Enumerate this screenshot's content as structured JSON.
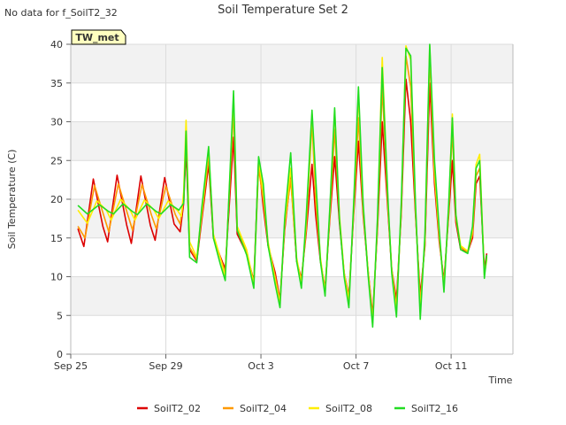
{
  "header": {
    "no_data_note": "No data for f_SoilT2_32",
    "station_badge": "TW_met"
  },
  "colors": {
    "band": "#f2f2f2",
    "grid": "#dcdcdc",
    "axis": "#bbbbbb",
    "badge_fill": "#ffffc0",
    "badge_text": "#aa0000"
  },
  "chart_data": {
    "type": "line",
    "title": "Soil Temperature Set 2",
    "xlabel": "Time",
    "ylabel": "Soil Temperature (C)",
    "xlim": [
      0,
      18.6
    ],
    "ylim": [
      0,
      40
    ],
    "yticks": [
      0,
      5,
      10,
      15,
      20,
      25,
      30,
      35,
      40
    ],
    "xticks": [
      {
        "day": 0,
        "label": "Sep 25"
      },
      {
        "day": 4,
        "label": "Sep 29"
      },
      {
        "day": 8,
        "label": "Oct 3"
      },
      {
        "day": 12,
        "label": "Oct 7"
      },
      {
        "day": 16,
        "label": "Oct 11"
      }
    ],
    "grid": true,
    "legend_position": "bottom",
    "series": [
      {
        "name": "SoilT2_02",
        "color": "#dd0000",
        "points": [
          [
            0.3,
            16.2
          ],
          [
            0.55,
            13.9
          ],
          [
            0.95,
            22.6
          ],
          [
            1.35,
            16.5
          ],
          [
            1.55,
            14.5
          ],
          [
            1.95,
            23.1
          ],
          [
            2.35,
            16.7
          ],
          [
            2.55,
            14.3
          ],
          [
            2.95,
            23.0
          ],
          [
            3.35,
            16.6
          ],
          [
            3.55,
            14.7
          ],
          [
            3.95,
            22.8
          ],
          [
            4.35,
            16.8
          ],
          [
            4.6,
            15.8
          ],
          [
            4.75,
            19.5
          ],
          [
            4.85,
            26.5
          ],
          [
            5.0,
            13.5
          ],
          [
            5.3,
            12.0
          ],
          [
            5.5,
            17.0
          ],
          [
            5.8,
            24.5
          ],
          [
            6.0,
            15.0
          ],
          [
            6.3,
            12.5
          ],
          [
            6.5,
            11.0
          ],
          [
            6.85,
            28.0
          ],
          [
            7.0,
            15.5
          ],
          [
            7.4,
            13.0
          ],
          [
            7.7,
            9.5
          ],
          [
            7.9,
            25.0
          ],
          [
            8.1,
            19.0
          ],
          [
            8.3,
            14.0
          ],
          [
            8.6,
            10.5
          ],
          [
            8.8,
            7.0
          ],
          [
            9.0,
            16.0
          ],
          [
            9.25,
            23.0
          ],
          [
            9.5,
            12.0
          ],
          [
            9.7,
            9.8
          ],
          [
            9.9,
            15.5
          ],
          [
            10.15,
            24.5
          ],
          [
            10.3,
            18.0
          ],
          [
            10.5,
            12.0
          ],
          [
            10.7,
            8.5
          ],
          [
            10.9,
            17.5
          ],
          [
            11.1,
            25.5
          ],
          [
            11.3,
            17.0
          ],
          [
            11.5,
            10.5
          ],
          [
            11.7,
            7.5
          ],
          [
            11.9,
            18.0
          ],
          [
            12.1,
            27.5
          ],
          [
            12.3,
            18.0
          ],
          [
            12.5,
            11.0
          ],
          [
            12.7,
            5.0
          ],
          [
            12.9,
            16.0
          ],
          [
            13.1,
            30.0
          ],
          [
            13.35,
            18.0
          ],
          [
            13.5,
            11.0
          ],
          [
            13.7,
            7.0
          ],
          [
            13.9,
            18.0
          ],
          [
            14.1,
            35.5
          ],
          [
            14.3,
            30.0
          ],
          [
            14.5,
            18.0
          ],
          [
            14.7,
            7.5
          ],
          [
            14.9,
            14.0
          ],
          [
            15.1,
            35.0
          ],
          [
            15.3,
            22.0
          ],
          [
            15.5,
            14.5
          ],
          [
            15.7,
            9.5
          ],
          [
            15.9,
            18.0
          ],
          [
            16.05,
            25.0
          ],
          [
            16.2,
            17.0
          ],
          [
            16.4,
            13.5
          ],
          [
            16.7,
            13.2
          ],
          [
            16.9,
            15.0
          ],
          [
            17.05,
            22.0
          ],
          [
            17.2,
            23.0
          ],
          [
            17.4,
            11.0
          ],
          [
            17.5,
            13.0
          ]
        ]
      },
      {
        "name": "SoilT2_04",
        "color": "#ff9900",
        "points": [
          [
            0.3,
            16.5
          ],
          [
            0.6,
            15.0
          ],
          [
            1.0,
            21.8
          ],
          [
            1.4,
            17.8
          ],
          [
            1.6,
            15.8
          ],
          [
            2.0,
            22.0
          ],
          [
            2.4,
            18.0
          ],
          [
            2.6,
            16.0
          ],
          [
            3.0,
            21.9
          ],
          [
            3.4,
            17.9
          ],
          [
            3.6,
            16.2
          ],
          [
            4.0,
            21.7
          ],
          [
            4.4,
            18.0
          ],
          [
            4.6,
            16.8
          ],
          [
            4.75,
            20.0
          ],
          [
            4.85,
            28.0
          ],
          [
            5.0,
            13.8
          ],
          [
            5.3,
            12.2
          ],
          [
            5.5,
            17.5
          ],
          [
            5.8,
            25.5
          ],
          [
            6.0,
            15.2
          ],
          [
            6.3,
            12.3
          ],
          [
            6.5,
            10.5
          ],
          [
            6.85,
            31.5
          ],
          [
            7.0,
            16.0
          ],
          [
            7.4,
            13.2
          ],
          [
            7.7,
            9.2
          ],
          [
            7.9,
            24.0
          ],
          [
            8.1,
            20.0
          ],
          [
            8.3,
            14.2
          ],
          [
            8.6,
            10.0
          ],
          [
            8.8,
            6.8
          ],
          [
            9.0,
            16.5
          ],
          [
            9.25,
            22.5
          ],
          [
            9.5,
            12.2
          ],
          [
            9.7,
            9.5
          ],
          [
            9.9,
            16.0
          ],
          [
            10.15,
            30.0
          ],
          [
            10.3,
            20.0
          ],
          [
            10.5,
            12.2
          ],
          [
            10.7,
            8.2
          ],
          [
            10.9,
            18.0
          ],
          [
            11.1,
            29.0
          ],
          [
            11.3,
            17.5
          ],
          [
            11.5,
            10.5
          ],
          [
            11.7,
            7.2
          ],
          [
            11.9,
            18.5
          ],
          [
            12.1,
            30.5
          ],
          [
            12.3,
            18.5
          ],
          [
            12.5,
            11.0
          ],
          [
            12.7,
            4.5
          ],
          [
            12.9,
            16.5
          ],
          [
            13.1,
            34.5
          ],
          [
            13.35,
            18.5
          ],
          [
            13.5,
            11.0
          ],
          [
            13.7,
            6.0
          ],
          [
            13.9,
            18.5
          ],
          [
            14.1,
            38.5
          ],
          [
            14.3,
            34.5
          ],
          [
            14.5,
            18.5
          ],
          [
            14.7,
            6.5
          ],
          [
            14.9,
            14.5
          ],
          [
            15.1,
            38.5
          ],
          [
            15.3,
            23.0
          ],
          [
            15.5,
            15.0
          ],
          [
            15.7,
            9.0
          ],
          [
            15.9,
            18.5
          ],
          [
            16.05,
            29.0
          ],
          [
            16.2,
            17.5
          ],
          [
            16.4,
            13.8
          ],
          [
            16.7,
            13.2
          ],
          [
            16.9,
            15.5
          ],
          [
            17.05,
            23.0
          ],
          [
            17.2,
            24.0
          ],
          [
            17.4,
            10.5
          ],
          [
            17.5,
            12.5
          ]
        ]
      },
      {
        "name": "SoilT2_08",
        "color": "#ffee00",
        "points": [
          [
            0.3,
            18.6
          ],
          [
            0.7,
            16.9
          ],
          [
            1.1,
            19.8
          ],
          [
            1.5,
            18.6
          ],
          [
            1.7,
            17.3
          ],
          [
            2.1,
            20.0
          ],
          [
            2.5,
            18.6
          ],
          [
            2.7,
            17.3
          ],
          [
            3.1,
            19.9
          ],
          [
            3.5,
            18.6
          ],
          [
            3.7,
            17.5
          ],
          [
            4.1,
            19.8
          ],
          [
            4.5,
            18.5
          ],
          [
            4.65,
            17.8
          ],
          [
            4.75,
            21.0
          ],
          [
            4.85,
            30.2
          ],
          [
            5.0,
            14.5
          ],
          [
            5.3,
            12.5
          ],
          [
            5.5,
            18.0
          ],
          [
            5.8,
            26.5
          ],
          [
            6.0,
            15.5
          ],
          [
            6.3,
            12.3
          ],
          [
            6.5,
            10.0
          ],
          [
            6.85,
            33.0
          ],
          [
            7.0,
            16.5
          ],
          [
            7.4,
            13.5
          ],
          [
            7.7,
            9.0
          ],
          [
            7.9,
            25.0
          ],
          [
            8.1,
            21.0
          ],
          [
            8.3,
            14.5
          ],
          [
            8.6,
            9.5
          ],
          [
            8.8,
            6.5
          ],
          [
            9.0,
            17.0
          ],
          [
            9.25,
            24.0
          ],
          [
            9.5,
            12.5
          ],
          [
            9.7,
            9.0
          ],
          [
            9.9,
            17.0
          ],
          [
            10.15,
            31.0
          ],
          [
            10.3,
            22.0
          ],
          [
            10.5,
            12.5
          ],
          [
            10.7,
            8.0
          ],
          [
            10.9,
            18.5
          ],
          [
            11.1,
            31.5
          ],
          [
            11.3,
            18.0
          ],
          [
            11.5,
            10.5
          ],
          [
            11.7,
            6.8
          ],
          [
            11.9,
            19.0
          ],
          [
            12.1,
            33.5
          ],
          [
            12.3,
            19.0
          ],
          [
            12.5,
            11.0
          ],
          [
            12.7,
            4.0
          ],
          [
            12.9,
            17.0
          ],
          [
            13.1,
            38.3
          ],
          [
            13.35,
            19.0
          ],
          [
            13.5,
            11.0
          ],
          [
            13.7,
            5.5
          ],
          [
            13.9,
            19.0
          ],
          [
            14.1,
            39.8
          ],
          [
            14.3,
            38.0
          ],
          [
            14.5,
            19.0
          ],
          [
            14.7,
            5.5
          ],
          [
            14.9,
            15.0
          ],
          [
            15.1,
            39.8
          ],
          [
            15.3,
            24.0
          ],
          [
            15.5,
            15.5
          ],
          [
            15.7,
            8.5
          ],
          [
            15.9,
            19.0
          ],
          [
            16.05,
            31.0
          ],
          [
            16.2,
            18.0
          ],
          [
            16.4,
            14.0
          ],
          [
            16.7,
            13.3
          ],
          [
            16.9,
            16.0
          ],
          [
            17.05,
            24.5
          ],
          [
            17.2,
            25.8
          ],
          [
            17.4,
            10.2
          ],
          [
            17.5,
            12.2
          ]
        ]
      },
      {
        "name": "SoilT2_16",
        "color": "#22dd22",
        "points": [
          [
            0.3,
            19.2
          ],
          [
            0.7,
            18.1
          ],
          [
            1.2,
            19.3
          ],
          [
            1.6,
            18.4
          ],
          [
            1.8,
            18.1
          ],
          [
            2.2,
            19.4
          ],
          [
            2.6,
            18.4
          ],
          [
            2.8,
            18.0
          ],
          [
            3.2,
            19.4
          ],
          [
            3.6,
            18.4
          ],
          [
            3.8,
            18.1
          ],
          [
            4.2,
            19.3
          ],
          [
            4.55,
            18.6
          ],
          [
            4.75,
            19.5
          ],
          [
            4.85,
            28.8
          ],
          [
            5.0,
            12.5
          ],
          [
            5.3,
            11.8
          ],
          [
            5.5,
            18.5
          ],
          [
            5.8,
            26.8
          ],
          [
            6.0,
            15.0
          ],
          [
            6.3,
            11.5
          ],
          [
            6.5,
            9.5
          ],
          [
            6.85,
            34.0
          ],
          [
            7.0,
            16.0
          ],
          [
            7.4,
            12.8
          ],
          [
            7.7,
            8.5
          ],
          [
            7.9,
            25.5
          ],
          [
            8.1,
            22.0
          ],
          [
            8.3,
            14.0
          ],
          [
            8.6,
            9.0
          ],
          [
            8.8,
            6.0
          ],
          [
            9.0,
            17.5
          ],
          [
            9.25,
            26.0
          ],
          [
            9.5,
            12.0
          ],
          [
            9.7,
            8.5
          ],
          [
            9.9,
            17.5
          ],
          [
            10.15,
            31.5
          ],
          [
            10.3,
            23.0
          ],
          [
            10.5,
            12.0
          ],
          [
            10.7,
            7.5
          ],
          [
            10.9,
            19.0
          ],
          [
            11.1,
            31.8
          ],
          [
            11.3,
            17.5
          ],
          [
            11.5,
            10.0
          ],
          [
            11.7,
            6.0
          ],
          [
            11.9,
            19.5
          ],
          [
            12.1,
            34.5
          ],
          [
            12.3,
            19.5
          ],
          [
            12.5,
            10.5
          ],
          [
            12.7,
            3.5
          ],
          [
            12.9,
            17.5
          ],
          [
            13.1,
            37.0
          ],
          [
            13.35,
            19.5
          ],
          [
            13.5,
            10.5
          ],
          [
            13.7,
            4.8
          ],
          [
            13.9,
            19.5
          ],
          [
            14.1,
            39.5
          ],
          [
            14.3,
            38.5
          ],
          [
            14.5,
            19.5
          ],
          [
            14.7,
            4.5
          ],
          [
            14.9,
            15.5
          ],
          [
            15.1,
            40.0
          ],
          [
            15.3,
            25.0
          ],
          [
            15.5,
            16.0
          ],
          [
            15.7,
            8.0
          ],
          [
            15.9,
            19.5
          ],
          [
            16.05,
            30.5
          ],
          [
            16.2,
            18.0
          ],
          [
            16.4,
            13.5
          ],
          [
            16.7,
            13.0
          ],
          [
            16.9,
            16.5
          ],
          [
            17.05,
            24.0
          ],
          [
            17.2,
            25.0
          ],
          [
            17.4,
            9.8
          ],
          [
            17.5,
            12.8
          ]
        ]
      }
    ]
  }
}
